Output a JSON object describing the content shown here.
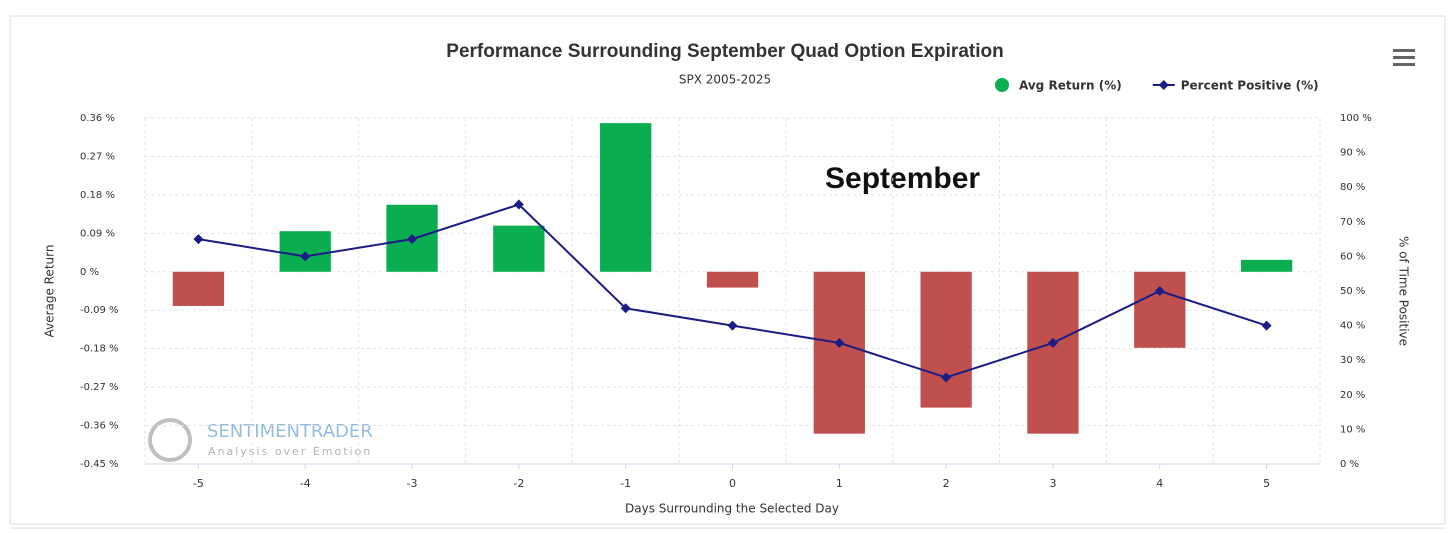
{
  "chart_data": {
    "type": "bar_line",
    "title": "Performance Surrounding September Quad Option Expiration",
    "subtitle": "SPX 2005-2025",
    "annotation": "September",
    "watermark": {
      "brand": "SENTIMENTRADER",
      "tagline": "Analysis over Emotion"
    },
    "x_label": "Days Surrounding the Selected Day",
    "y_label": "Average Return",
    "y2_label": "% of Time Positive",
    "categories": [
      "-5",
      "-4",
      "-3",
      "-2",
      "-1",
      "0",
      "1",
      "2",
      "3",
      "4",
      "5"
    ],
    "series": [
      {
        "name": "Avg Return (%)",
        "type": "bar",
        "color": "#0aad4f",
        "negative_color": "#c0504d",
        "values": [
          -0.08,
          0.095,
          0.157,
          0.108,
          0.348,
          -0.037,
          -0.379,
          -0.318,
          -0.379,
          -0.178,
          0.028
        ]
      },
      {
        "name": "Percent Positive (%)",
        "type": "line",
        "axis": "y2",
        "color": "#1c1c85",
        "values": [
          65,
          60,
          65,
          75,
          45,
          40,
          35,
          25,
          35,
          50,
          40
        ]
      }
    ],
    "ylim": [
      -0.45,
      0.36
    ],
    "yticks": [
      {
        "value": 0.36,
        "label": "0.36 %"
      },
      {
        "value": 0.27,
        "label": "0.27 %"
      },
      {
        "value": 0.18,
        "label": "0.18 %"
      },
      {
        "value": 0.09,
        "label": "0.09 %"
      },
      {
        "value": 0,
        "label": "0 %"
      },
      {
        "value": -0.09,
        "label": "-0.09 %"
      },
      {
        "value": -0.18,
        "label": "-0.18 %"
      },
      {
        "value": -0.27,
        "label": "-0.27 %"
      },
      {
        "value": -0.36,
        "label": "-0.36 %"
      },
      {
        "value": -0.45,
        "label": "-0.45 %"
      }
    ],
    "y2lim": [
      0,
      100
    ],
    "y2ticks": [
      {
        "value": 100,
        "label": "100 %"
      },
      {
        "value": 90,
        "label": "90 %"
      },
      {
        "value": 80,
        "label": "80 %"
      },
      {
        "value": 70,
        "label": "70 %"
      },
      {
        "value": 60,
        "label": "60 %"
      },
      {
        "value": 50,
        "label": "50 %"
      },
      {
        "value": 40,
        "label": "40 %"
      },
      {
        "value": 30,
        "label": "30 %"
      },
      {
        "value": 20,
        "label": "20 %"
      },
      {
        "value": 10,
        "label": "10 %"
      },
      {
        "value": 0,
        "label": "0 %"
      }
    ],
    "grid": true,
    "legend": "top-right"
  }
}
